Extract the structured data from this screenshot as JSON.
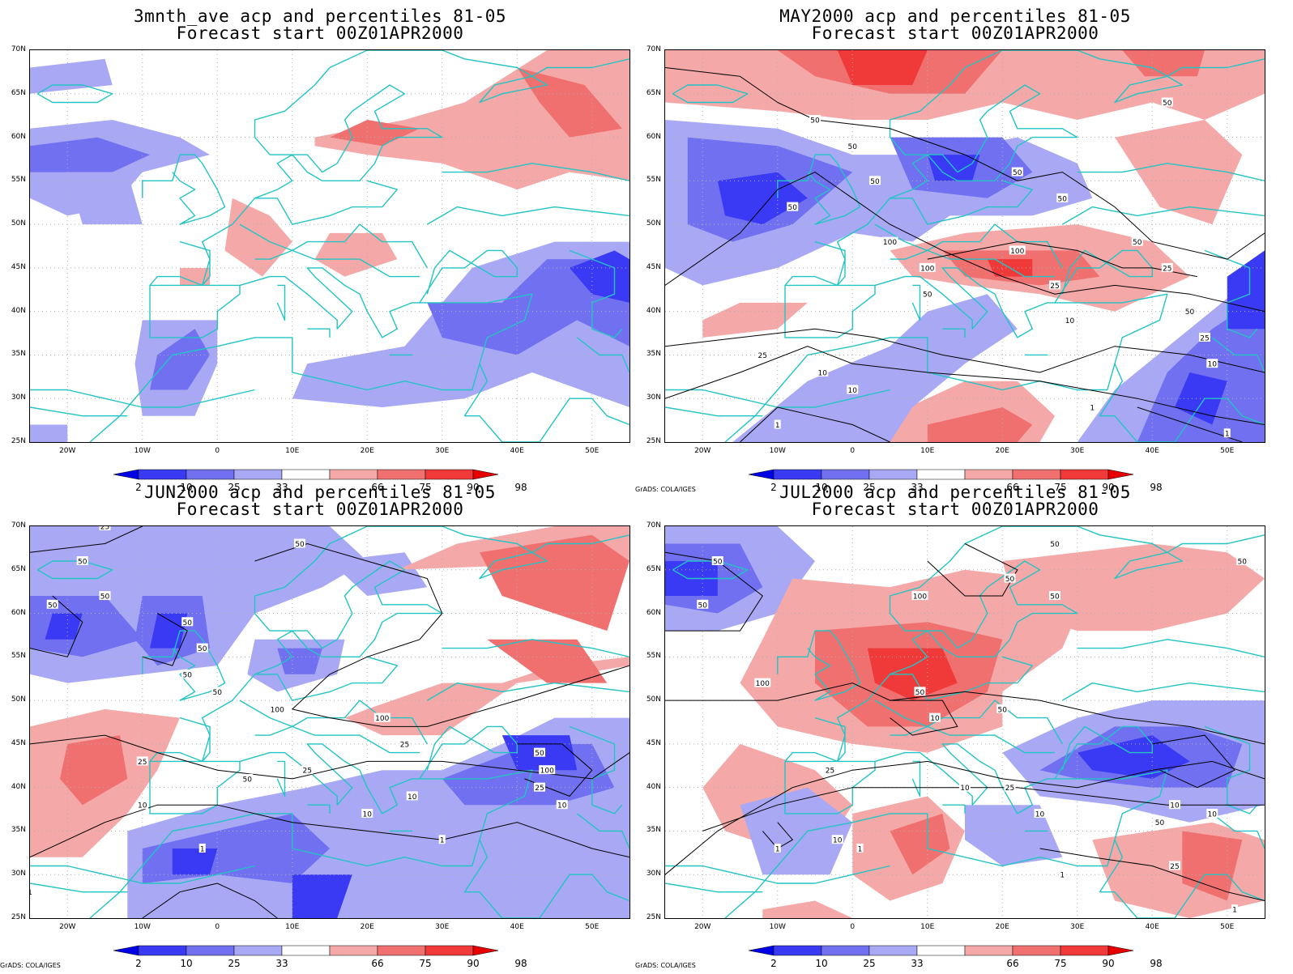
{
  "axes": {
    "lat_labels": [
      "70N",
      "65N",
      "60N",
      "55N",
      "50N",
      "45N",
      "40N",
      "35N",
      "30N",
      "25N"
    ],
    "lon_labels": [
      "20W",
      "10W",
      "0",
      "10E",
      "20E",
      "30E",
      "40E",
      "50E"
    ]
  },
  "colorbar": {
    "labels": [
      "2",
      "10",
      "25",
      "33",
      "66",
      "75",
      "90",
      "98"
    ],
    "colors": [
      "#0000e6",
      "#3a3af4",
      "#7070f0",
      "#a8a8f5",
      "#ffffff",
      "#f5a8a8",
      "#f07070",
      "#f03a3a",
      "#e60000"
    ]
  },
  "colors": {
    "coastline": "#22c4c4",
    "contour": "#000000",
    "grid": "#b0b0b0"
  },
  "credit": "GrADS: COLA/IGES",
  "panels": [
    {
      "title": "3mnth_ave acp and percentiles 81-05",
      "subtitle": "Forecast start 00Z01APR2000",
      "credit": "",
      "contour_labels": []
    },
    {
      "title": "MAY2000 acp and percentiles 81-05",
      "subtitle": "Forecast start 00Z01APR2000",
      "credit": "GrADS: COLA/IGES",
      "contour_labels": [
        "50",
        "50",
        "50",
        "50",
        "50",
        "50",
        "100",
        "100",
        "100",
        "50",
        "50",
        "25",
        "25",
        "10",
        "25",
        "10",
        "10",
        "50",
        "25",
        "10",
        "1",
        "1",
        "1",
        "10",
        "50"
      ]
    },
    {
      "title": "JUN2000 acp and percentiles 81-05",
      "subtitle": "Forecast start 00Z01APR2000",
      "credit": "GrADS: COLA/IGES",
      "contour_labels": [
        "25",
        "50",
        "50",
        "50",
        "50",
        "50",
        "50",
        "50",
        "50",
        "100",
        "100",
        "25",
        "25",
        "50",
        "25",
        "10",
        "10",
        "10",
        "1",
        "1",
        "1",
        "50",
        "100",
        "25",
        "10"
      ]
    },
    {
      "title": "JUL2000 acp and percentiles 81-05",
      "subtitle": "Forecast start 00Z01APR2000",
      "credit": "GrADS: COLA/IGES",
      "contour_labels": [
        "50",
        "50",
        "50",
        "100",
        "50",
        "50",
        "100",
        "50",
        "50",
        "10",
        "25",
        "10",
        "25",
        "10",
        "50",
        "25",
        "10",
        "1",
        "1",
        "10",
        "10",
        "1",
        "1",
        "50"
      ]
    }
  ]
}
